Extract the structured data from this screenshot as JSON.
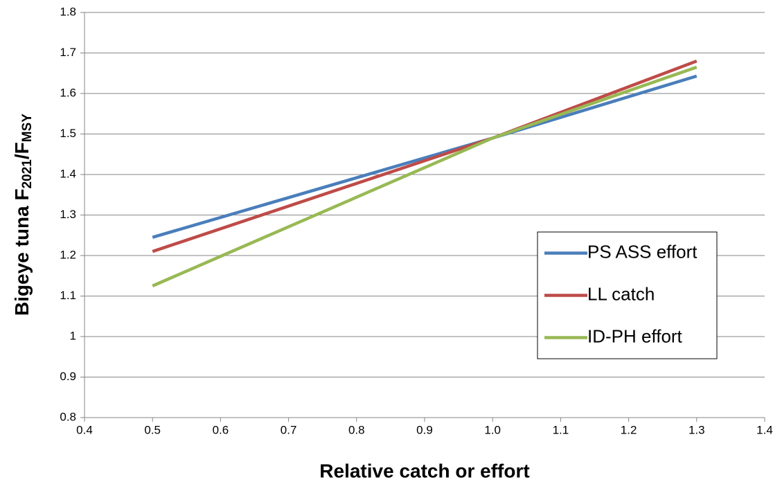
{
  "chart_data": {
    "type": "line",
    "xlabel": "Relative catch or effort",
    "ylabel_parts": [
      "Bigeye tuna  F",
      "2021",
      "/F",
      "MSY"
    ],
    "x": [
      0.5,
      1.0,
      1.3
    ],
    "series": [
      {
        "name": "PS ASS effort",
        "color": "#4a7ebb",
        "values": [
          1.245,
          1.49,
          1.643
        ]
      },
      {
        "name": "LL catch",
        "color": "#be4b48",
        "values": [
          1.21,
          1.49,
          1.68
        ]
      },
      {
        "name": "ID-PH effort",
        "color": "#98b954",
        "values": [
          1.125,
          1.49,
          1.665
        ]
      }
    ],
    "xlim": [
      0.4,
      1.4
    ],
    "xticks": [
      0.4,
      0.5,
      0.6,
      0.7,
      0.8,
      0.9,
      {
        "value": 1,
        "label": "1.0"
      },
      1.1,
      1.2,
      1.3,
      1.4
    ],
    "ylim": [
      0.8,
      1.8
    ],
    "yticks": [
      0.8,
      0.9,
      1,
      1.1,
      1.2,
      1.3,
      1.4,
      1.5,
      1.6,
      1.7,
      1.8
    ],
    "grid": true,
    "legend": "right"
  }
}
